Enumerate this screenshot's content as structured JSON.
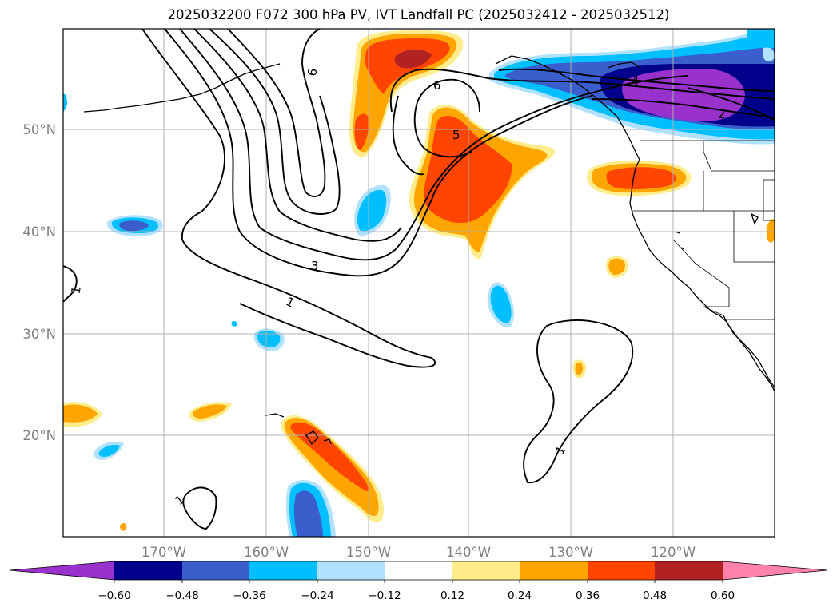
{
  "title": "2025032200 F072 300 hPa PV, IVT Landfall PC (2025032412 - 2025032512)",
  "map": {
    "lon_ticks": [
      "170°W",
      "160°W",
      "150°W",
      "140°W",
      "130°W",
      "120°W"
    ],
    "lat_ticks": [
      "50°N",
      "40°N",
      "30°N",
      "20°N"
    ],
    "pv_contour_labels": [
      "1",
      "1",
      "1",
      "1",
      "2",
      "3",
      "4",
      "5",
      "6",
      "6"
    ]
  },
  "colorbar": {
    "ticks": [
      "−0.60",
      "−0.48",
      "−0.36",
      "−0.24",
      "−0.12",
      "0.12",
      "0.24",
      "0.36",
      "0.48",
      "0.60"
    ],
    "colors": {
      "below_min": "#9932cc",
      "neg_048": "#00008b",
      "neg_036": "#3a5fcd",
      "neg_024": "#00bfff",
      "neg_012": "#b0e2ff",
      "neutral": "#ffffff",
      "pos_012": "#ffec8b",
      "pos_024": "#ffa500",
      "pos_036": "#ff4500",
      "pos_048": "#b22222",
      "above_max": "#ff82ab"
    }
  }
}
